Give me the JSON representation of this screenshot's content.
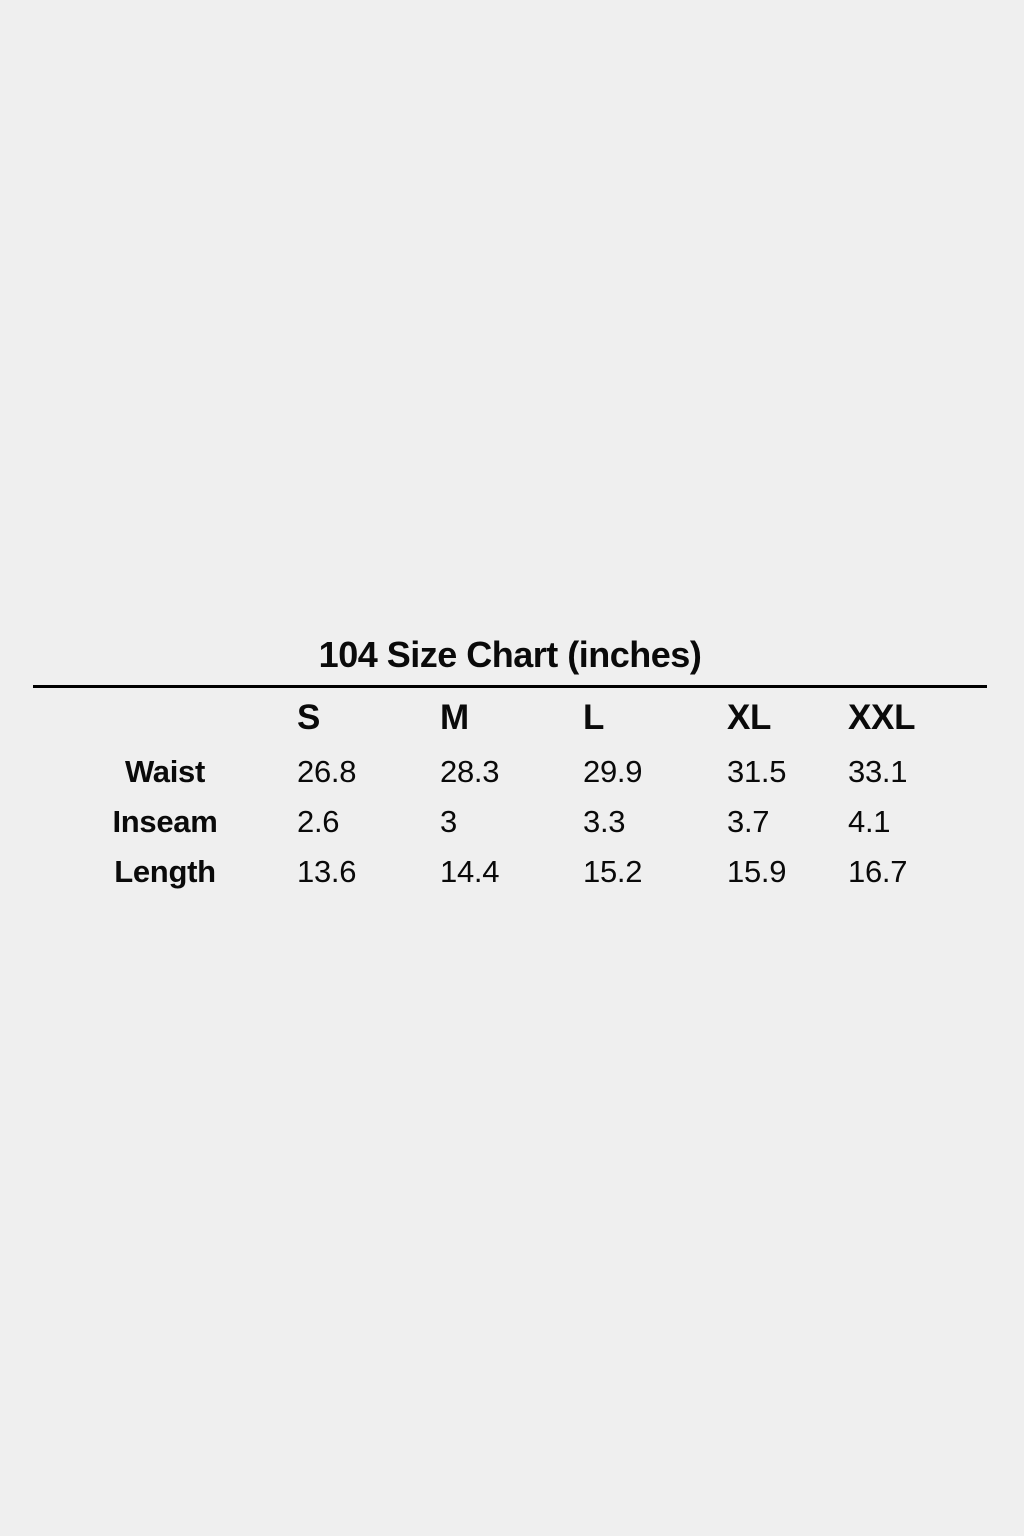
{
  "page": {
    "background_color": "#efefef",
    "text_color": "#0a0a0a",
    "divider_color": "#000000"
  },
  "size_chart": {
    "title": "104 Size Chart (inches)",
    "unit": "inches",
    "columns": [
      "S",
      "M",
      "L",
      "XL",
      "XXL"
    ],
    "rows": [
      {
        "label": "Waist",
        "values": [
          "26.8",
          "28.3",
          "29.9",
          "31.5",
          "33.1"
        ]
      },
      {
        "label": "Inseam",
        "values": [
          "2.6",
          "3",
          "3.3",
          "3.7",
          "4.1"
        ]
      },
      {
        "label": "Length",
        "values": [
          "13.6",
          "14.4",
          "15.2",
          "15.9",
          "16.7"
        ]
      }
    ]
  },
  "chart_data": {
    "type": "table",
    "title": "104 Size Chart (inches)",
    "unit": "inches",
    "columns": [
      "",
      "S",
      "M",
      "L",
      "XL",
      "XXL"
    ],
    "rows": [
      [
        "Waist",
        26.8,
        28.3,
        29.9,
        31.5,
        33.1
      ],
      [
        "Inseam",
        2.6,
        3,
        3.3,
        3.7,
        4.1
      ],
      [
        "Length",
        13.6,
        14.4,
        15.2,
        15.9,
        16.7
      ]
    ]
  }
}
